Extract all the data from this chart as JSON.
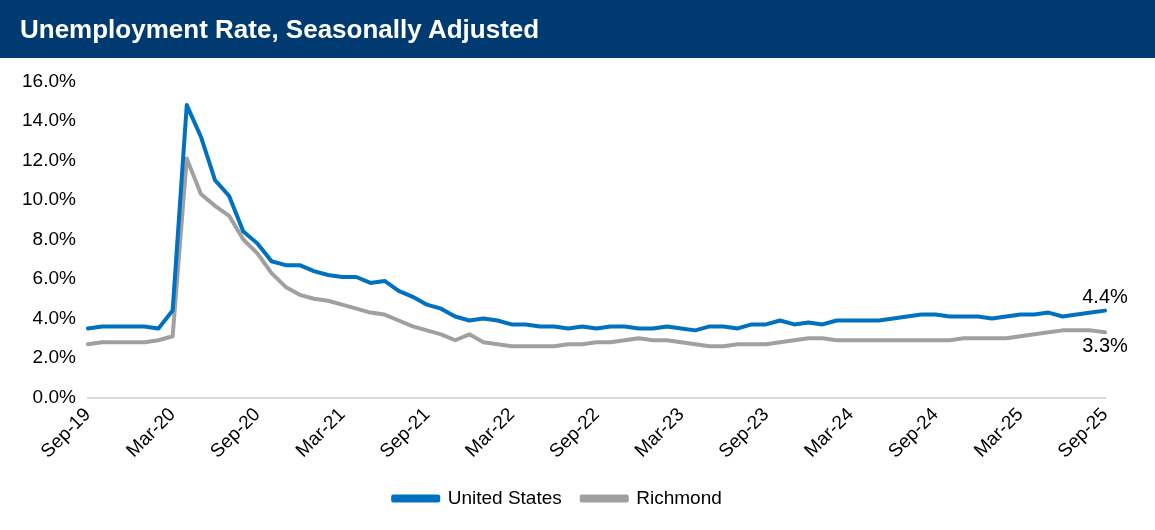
{
  "chart_data": {
    "type": "line",
    "title": "Unemployment Rate, Seasonally Adjusted",
    "categories": [
      "Sep-19",
      null,
      null,
      null,
      null,
      null,
      "Mar-20",
      null,
      null,
      null,
      null,
      null,
      "Sep-20",
      null,
      null,
      null,
      null,
      null,
      "Mar-21",
      null,
      null,
      null,
      null,
      null,
      "Sep-21",
      null,
      null,
      null,
      null,
      null,
      "Mar-22",
      null,
      null,
      null,
      null,
      null,
      "Sep-22",
      null,
      null,
      null,
      null,
      null,
      "Mar-23",
      null,
      null,
      null,
      null,
      null,
      "Sep-23",
      null,
      null,
      null,
      null,
      null,
      "Mar-24",
      null,
      null,
      null,
      null,
      null,
      "Sep-24",
      null,
      null,
      null,
      null,
      null,
      "Mar-25",
      null,
      null,
      null,
      null,
      null,
      "Sep-25"
    ],
    "series": [
      {
        "name": "United States",
        "color": "#0070c0",
        "values": [
          3.5,
          3.6,
          3.6,
          3.6,
          3.6,
          3.5,
          4.4,
          14.8,
          13.2,
          11.0,
          10.2,
          8.4,
          7.8,
          6.9,
          6.7,
          6.7,
          6.4,
          6.2,
          6.1,
          6.1,
          5.8,
          5.9,
          5.4,
          5.1,
          4.7,
          4.5,
          4.1,
          3.9,
          4.0,
          3.9,
          3.7,
          3.7,
          3.6,
          3.6,
          3.5,
          3.6,
          3.5,
          3.6,
          3.6,
          3.5,
          3.5,
          3.6,
          3.5,
          3.4,
          3.6,
          3.6,
          3.5,
          3.7,
          3.7,
          3.9,
          3.7,
          3.8,
          3.7,
          3.9,
          3.9,
          3.9,
          3.9,
          4.0,
          4.1,
          4.2,
          4.2,
          4.1,
          4.1,
          4.1,
          4.0,
          4.1,
          4.2,
          4.2,
          4.3,
          4.1,
          4.2,
          4.3,
          4.4
        ],
        "value_labels": [
          null,
          null,
          null,
          null,
          null,
          null,
          null,
          null,
          null,
          null,
          null,
          null,
          null,
          null,
          null,
          null,
          null,
          null,
          null,
          null,
          null,
          null,
          null,
          null,
          null,
          null,
          null,
          null,
          null,
          null,
          null,
          null,
          null,
          null,
          null,
          null,
          null,
          null,
          null,
          null,
          null,
          null,
          null,
          null,
          null,
          null,
          null,
          null,
          null,
          null,
          null,
          null,
          null,
          null,
          null,
          null,
          null,
          null,
          null,
          null,
          null,
          null,
          null,
          null,
          null,
          null,
          null,
          null,
          null,
          null,
          null,
          null,
          "4.4%"
        ]
      },
      {
        "name": "Richmond",
        "color": "#a0a0a0",
        "values": [
          2.7,
          2.8,
          2.8,
          2.8,
          2.8,
          2.9,
          3.1,
          12.1,
          10.3,
          9.7,
          9.2,
          8.0,
          7.3,
          6.3,
          5.6,
          5.2,
          5.0,
          4.9,
          4.7,
          4.5,
          4.3,
          4.2,
          3.9,
          3.6,
          3.4,
          3.2,
          2.9,
          3.2,
          2.8,
          2.7,
          2.6,
          2.6,
          2.6,
          2.6,
          2.7,
          2.7,
          2.8,
          2.8,
          2.9,
          3.0,
          2.9,
          2.9,
          2.8,
          2.7,
          2.6,
          2.6,
          2.7,
          2.7,
          2.7,
          2.8,
          2.9,
          3.0,
          3.0,
          2.9,
          2.9,
          2.9,
          2.9,
          2.9,
          2.9,
          2.9,
          2.9,
          2.9,
          3.0,
          3.0,
          3.0,
          3.0,
          3.1,
          3.2,
          3.3,
          3.4,
          3.4,
          3.4,
          3.3
        ],
        "value_labels": [
          null,
          null,
          null,
          null,
          null,
          null,
          null,
          null,
          null,
          null,
          null,
          null,
          null,
          null,
          null,
          null,
          null,
          null,
          null,
          null,
          null,
          null,
          null,
          null,
          null,
          null,
          null,
          null,
          null,
          null,
          null,
          null,
          null,
          null,
          null,
          null,
          null,
          null,
          null,
          null,
          null,
          null,
          null,
          null,
          null,
          null,
          null,
          null,
          null,
          null,
          null,
          null,
          null,
          null,
          null,
          null,
          null,
          null,
          null,
          null,
          null,
          null,
          null,
          null,
          null,
          null,
          null,
          null,
          null,
          null,
          null,
          null,
          "3.3%"
        ]
      }
    ],
    "ylim": [
      0,
      16
    ],
    "yticks": [
      {
        "value": 0,
        "label": "0.0%"
      },
      {
        "value": 2,
        "label": "2.0%"
      },
      {
        "value": 4,
        "label": "4.0%"
      },
      {
        "value": 6,
        "label": "6.0%"
      },
      {
        "value": 8,
        "label": "8.0%"
      },
      {
        "value": 10,
        "label": "10.0%"
      },
      {
        "value": 12,
        "label": "12.0%"
      },
      {
        "value": 14,
        "label": "14.0%"
      },
      {
        "value": 16,
        "label": "16.0%"
      }
    ],
    "grid": false,
    "legend": "bottom",
    "marker": "none",
    "line_style": "solid"
  }
}
